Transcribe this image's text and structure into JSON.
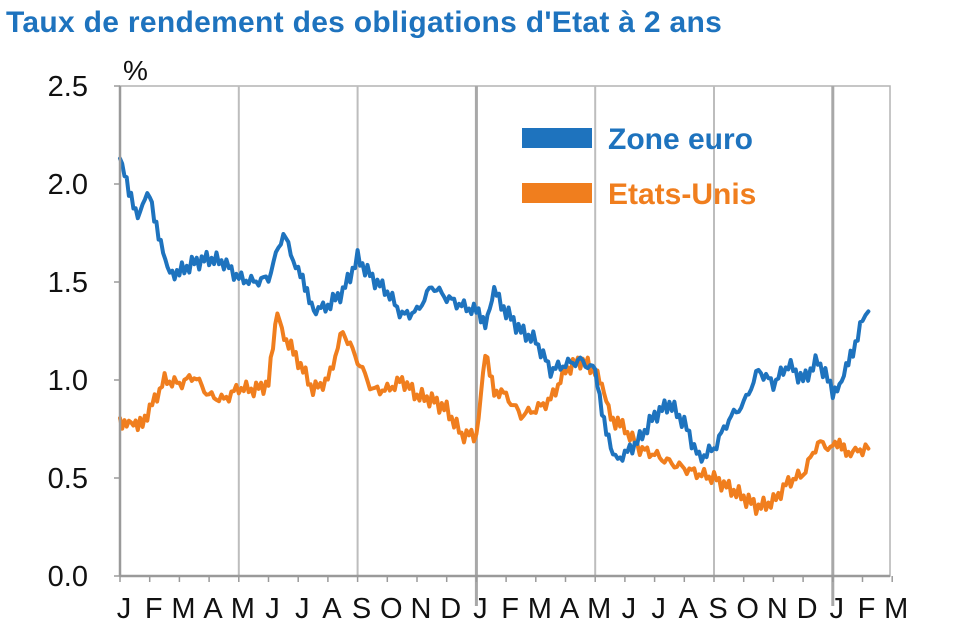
{
  "chart_data": {
    "type": "line",
    "title": "Taux de rendement des obligations d'Etat à 2 ans",
    "ylabel": "%",
    "xlabel": "",
    "ylim": [
      0,
      2.5
    ],
    "yticks": [
      "0.0",
      "0.5",
      "1.0",
      "1.5",
      "2.0",
      "2.5"
    ],
    "x_month_labels": [
      "J",
      "F",
      "M",
      "A",
      "M",
      "J",
      "J",
      "A",
      "S",
      "O",
      "N",
      "D",
      "J",
      "F",
      "M",
      "A",
      "M",
      "J",
      "J",
      "A",
      "S",
      "O",
      "N",
      "D",
      "J",
      "F",
      "M"
    ],
    "x_unit": "month index (0 = January year 1, 24 = January year 3)",
    "grid": true,
    "legend_position": "top-right",
    "series": [
      {
        "name": "Zone euro",
        "color": "#1e73be",
        "x": [
          0,
          0.3,
          0.6,
          1,
          1.3,
          1.6,
          2,
          2.5,
          3,
          3.5,
          4,
          4.5,
          5,
          5.5,
          6,
          6.3,
          6.6,
          7,
          7.5,
          8,
          8.5,
          9,
          9.5,
          10,
          10.5,
          11,
          11.5,
          12,
          12.3,
          12.6,
          13,
          13.5,
          14,
          14.5,
          15,
          15.5,
          16,
          16.3,
          16.6,
          17,
          17.5,
          18,
          18.5,
          19,
          19.5,
          20,
          20.5,
          21,
          21.5,
          22,
          22.5,
          23,
          23.5,
          24,
          24.3,
          24.6,
          25,
          25.2
        ],
        "values": [
          2.13,
          1.95,
          1.85,
          1.95,
          1.75,
          1.55,
          1.55,
          1.6,
          1.62,
          1.6,
          1.52,
          1.5,
          1.52,
          1.75,
          1.55,
          1.45,
          1.35,
          1.38,
          1.45,
          1.62,
          1.52,
          1.45,
          1.33,
          1.35,
          1.48,
          1.42,
          1.38,
          1.35,
          1.3,
          1.45,
          1.35,
          1.25,
          1.2,
          1.05,
          1.08,
          1.1,
          1.05,
          0.8,
          0.6,
          0.62,
          0.7,
          0.82,
          0.88,
          0.78,
          0.6,
          0.65,
          0.8,
          0.88,
          1.05,
          0.98,
          1.08,
          1.0,
          1.1,
          0.95,
          0.98,
          1.12,
          1.3,
          1.35
        ]
      },
      {
        "name": "Etats-Unis",
        "color": "#f07e1e",
        "x": [
          0,
          0.3,
          0.6,
          1,
          1.5,
          2,
          2.5,
          3,
          3.5,
          4,
          4.5,
          5,
          5.3,
          5.6,
          6,
          6.5,
          7,
          7.5,
          8,
          8.5,
          9,
          9.5,
          10,
          10.5,
          11,
          11.5,
          12,
          12.3,
          12.6,
          13,
          13.5,
          14,
          14.5,
          15,
          15.5,
          16,
          16.3,
          16.6,
          17,
          17.5,
          18,
          18.5,
          19,
          19.5,
          20,
          20.5,
          21,
          21.5,
          22,
          22.5,
          23,
          23.5,
          24,
          24.3,
          24.6,
          25,
          25.2
        ],
        "values": [
          0.78,
          0.8,
          0.75,
          0.85,
          1.0,
          0.98,
          1.02,
          0.92,
          0.9,
          0.96,
          0.95,
          0.98,
          1.35,
          1.2,
          1.1,
          0.95,
          1.0,
          1.25,
          1.1,
          0.95,
          0.95,
          1.0,
          0.92,
          0.9,
          0.85,
          0.72,
          0.72,
          1.12,
          0.95,
          0.92,
          0.82,
          0.85,
          0.9,
          1.05,
          1.1,
          1.05,
          0.92,
          0.8,
          0.75,
          0.65,
          0.62,
          0.58,
          0.55,
          0.52,
          0.5,
          0.45,
          0.4,
          0.35,
          0.38,
          0.48,
          0.52,
          0.68,
          0.65,
          0.68,
          0.62,
          0.65,
          0.65
        ]
      }
    ]
  }
}
